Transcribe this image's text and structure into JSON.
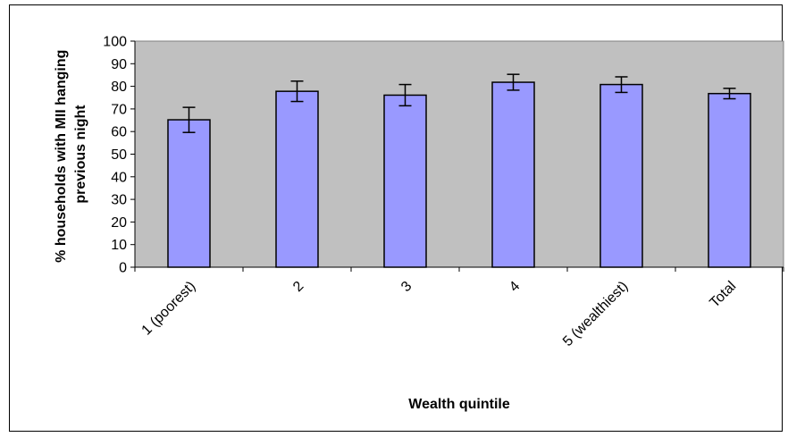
{
  "chart_data": {
    "type": "bar",
    "title": "",
    "xlabel": "Wealth quintile",
    "ylabel_lines": [
      "% households with MII hanging",
      "previous night"
    ],
    "categories": [
      "1 (poorest)",
      "2",
      "3",
      "4",
      "5 (wealthiest)",
      "Total"
    ],
    "values": [
      65.2,
      77.8,
      76.1,
      81.8,
      80.8,
      76.8
    ],
    "error_low": [
      59.6,
      73.3,
      71.4,
      78.3,
      77.3,
      74.5
    ],
    "error_high": [
      70.7,
      82.3,
      80.8,
      85.3,
      84.2,
      79.1
    ],
    "ylim": [
      0,
      100
    ],
    "yticks": [
      0,
      10,
      20,
      30,
      40,
      50,
      60,
      70,
      80,
      90,
      100
    ],
    "grid": false,
    "legend": "none",
    "colors": {
      "plot_background": "#c0c0c0",
      "bar_fill": "#9999ff",
      "bar_stroke": "#000000",
      "error_bar": "#000000"
    }
  }
}
